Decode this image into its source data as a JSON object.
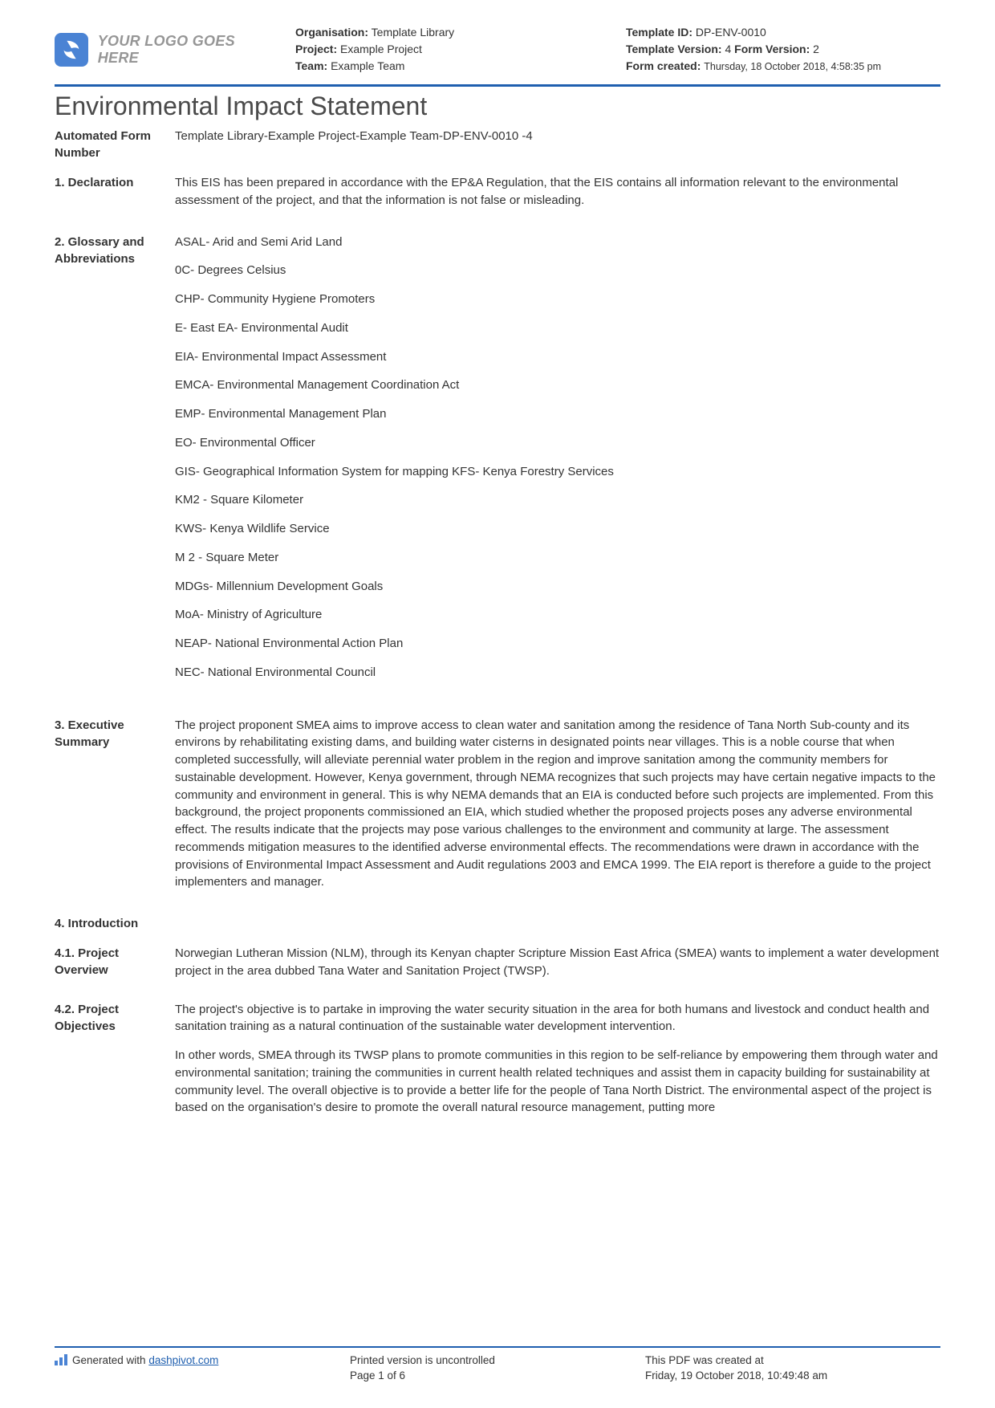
{
  "header": {
    "logo_text": "YOUR LOGO GOES HERE",
    "meta1": {
      "org_label": "Organisation:",
      "org_value": "Template Library",
      "project_label": "Project:",
      "project_value": "Example Project",
      "team_label": "Team:",
      "team_value": "Example Team"
    },
    "meta2": {
      "tid_label": "Template ID:",
      "tid_value": "DP-ENV-0010",
      "tv_label": "Template Version:",
      "tv_value": "4",
      "fv_label": "Form Version:",
      "fv_value": "2",
      "fc_label": "Form created:",
      "fc_value": "Thursday, 18 October 2018, 4:58:35 pm"
    }
  },
  "title": "Environmental Impact Statement",
  "rows": {
    "formnum_label": "Automated Form Number",
    "formnum_value": "Template Library-Example Project-Example Team-DP-ENV-0010   -4",
    "declaration_label": "1. Declaration",
    "declaration_text": "This EIS has been prepared in accordance with the EP&A Regulation, that the EIS contains all information relevant to the environmental assessment of the project, and that the information is not false or misleading.",
    "glossary_label": "2. Glossary and Abbreviations",
    "glossary": [
      "ASAL- Arid and Semi Arid Land",
      "0C- Degrees Celsius",
      "CHP- Community Hygiene Promoters",
      "E- East EA- Environmental Audit",
      "EIA- Environmental Impact Assessment",
      "EMCA- Environmental Management Coordination Act",
      "EMP- Environmental Management Plan",
      "EO- Environmental Officer",
      "GIS- Geographical Information System for mapping KFS- Kenya Forestry Services",
      "KM2 - Square Kilometer",
      "KWS- Kenya Wildlife Service",
      "M 2 - Square Meter",
      "MDGs- Millennium Development Goals",
      "MoA- Ministry of Agriculture",
      "NEAP- National Environmental Action Plan",
      "NEC- National Environmental Council"
    ],
    "exec_label": "3. Executive Summary",
    "exec_text": "The project proponent SMEA aims to improve access to clean water and sanitation among the residence of Tana North Sub-county and its environs by rehabilitating existing dams, and building water cisterns in designated points near villages. This is a noble course that when completed successfully, will alleviate perennial water problem in the region and improve sanitation among the community members for sustainable development. However, Kenya government, through NEMA recognizes that such projects may have certain negative impacts to the community and environment in general. This is why NEMA demands that an EIA is conducted before such projects are implemented. From this background, the project proponents commissioned an EIA, which studied whether the proposed projects poses any adverse environmental effect. The results indicate that the projects may pose various challenges to the environment and community at large. The assessment recommends mitigation measures to the identified adverse environmental effects. The recommendations were drawn in accordance with the provisions of Environmental Impact Assessment and Audit regulations 2003 and EMCA 1999. The EIA report is therefore a guide to the project implementers and manager.",
    "intro_label": "4. Introduction",
    "overview_label": "4.1. Project Overview",
    "overview_text": "Norwegian Lutheran Mission (NLM), through its Kenyan chapter Scripture Mission East Africa (SMEA) wants to implement a water development project in the area dubbed Tana Water and Sanitation Project (TWSP).",
    "objectives_label": "4.2. Project Objectives",
    "objectives_p1": "The project's objective is to partake in improving the water security situation in the area for both humans and livestock and conduct health and sanitation training as a natural continuation of the sustainable water development intervention.",
    "objectives_p2": "In other words, SMEA through its TWSP plans to promote communities in this region to be self-reliance by empowering them through water and environmental sanitation; training the communities in current health related techniques and assist them in capacity building for sustainability at community level. The overall objective is to provide a better life for the people of Tana North District. The environmental aspect of the project is based on the organisation's desire to promote the overall natural resource management, putting more"
  },
  "footer": {
    "gen_prefix": "Generated with ",
    "gen_link": "dashpivot.com",
    "uncontrolled": "Printed version is uncontrolled",
    "page": "Page 1 of 6",
    "created_label": "This PDF was created at",
    "created_value": "Friday, 19 October 2018, 10:49:48 am"
  },
  "colors": {
    "rule": "#1f5faf",
    "logo": "#4a83d4"
  }
}
